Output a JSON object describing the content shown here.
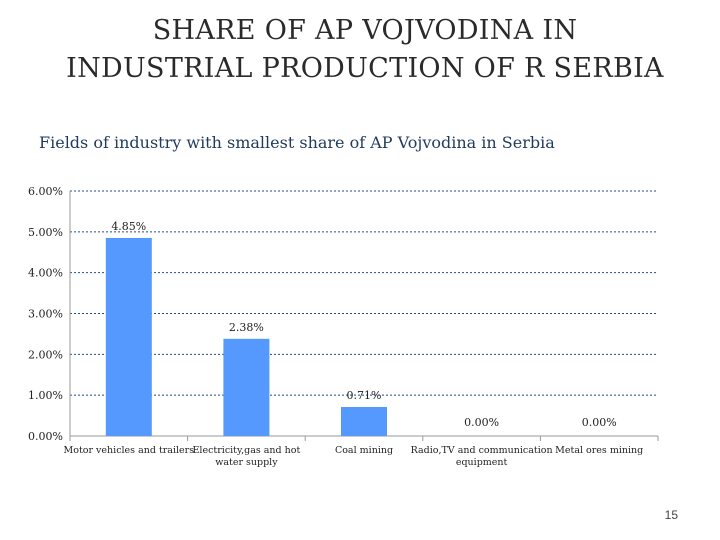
{
  "slide": {
    "title": "SHARE OF AP VOJVODINA IN INDUSTRIAL PRODUCTION OF R SERBIA",
    "subtitle": "Fields of industry with smallest share of AP Vojvodina in Serbia",
    "page_number": "15"
  },
  "colors": {
    "bar": "#5599ff",
    "gridline": "#1f4e8c",
    "axis": "#999999"
  },
  "chart_data": {
    "type": "bar",
    "categories": [
      "Motor vehicles and trailers",
      "Electricity,gas and hot water supply",
      "Coal mining",
      "Radio,TV and communication equipment",
      "Metal ores mining"
    ],
    "values": [
      4.85,
      2.38,
      0.71,
      0.0,
      0.0
    ],
    "data_labels": [
      "4.85%",
      "2.38%",
      "0.71%",
      "0.00%",
      "0.00%"
    ],
    "ylim": [
      0,
      6
    ],
    "yticks": [
      "0.00%",
      "1.00%",
      "2.00%",
      "3.00%",
      "4.00%",
      "5.00%",
      "6.00%"
    ],
    "grid": true,
    "legend": "none"
  }
}
